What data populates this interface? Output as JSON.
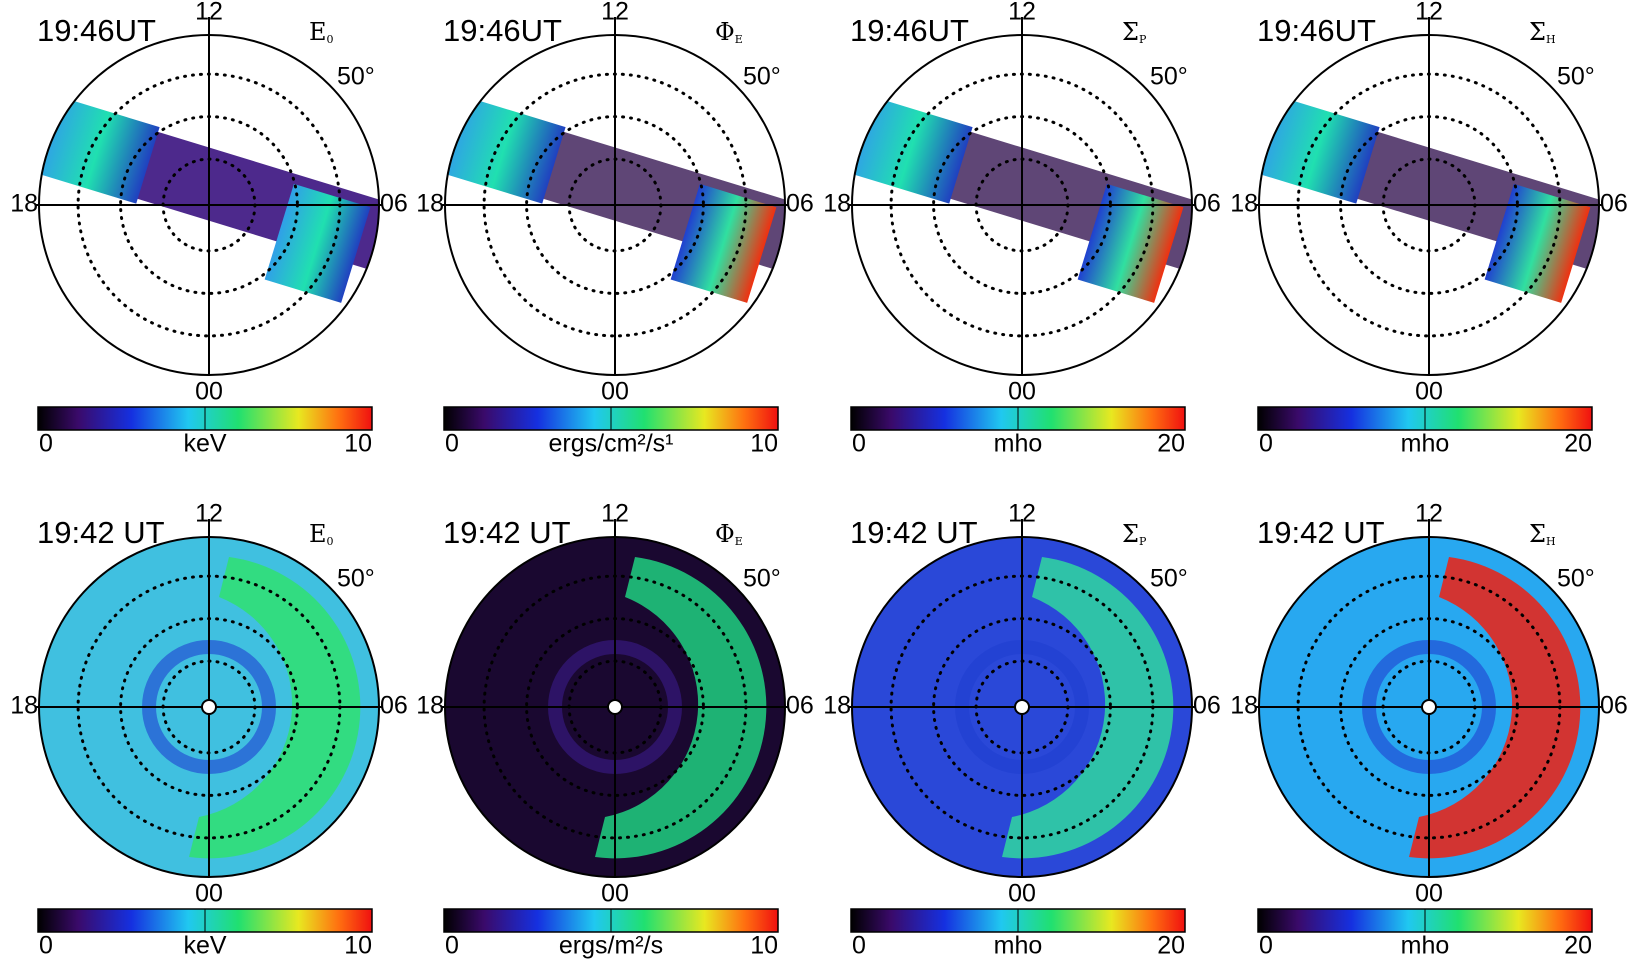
{
  "panels": [
    {
      "time": "19:46UT",
      "symbol": "E",
      "subscript": "0",
      "top": "12",
      "bottom": "00",
      "left": "18",
      "right": "06",
      "lat_label": "50°",
      "cb_min": "0",
      "cb_unit": "keV",
      "cb_max": "10"
    },
    {
      "time": "19:46UT",
      "symbol": "Φ",
      "subscript": "E",
      "top": "12",
      "bottom": "00",
      "left": "18",
      "right": "06",
      "lat_label": "50°",
      "cb_min": "0",
      "cb_unit": "ergs/cm²/s¹",
      "cb_max": "10"
    },
    {
      "time": "19:46UT",
      "symbol": "Σ",
      "subscript": "P",
      "top": "12",
      "bottom": "00",
      "left": "18",
      "right": "06",
      "lat_label": "50°",
      "cb_min": "0",
      "cb_unit": "mho",
      "cb_max": "20"
    },
    {
      "time": "19:46UT",
      "symbol": "Σ",
      "subscript": "H",
      "top": "12",
      "bottom": "00",
      "left": "18",
      "right": "06",
      "lat_label": "50°",
      "cb_min": "0",
      "cb_unit": "mho",
      "cb_max": "20"
    },
    {
      "time": "19:42 UT",
      "symbol": "E",
      "subscript": "0",
      "top": "12",
      "bottom": "00",
      "left": "18",
      "right": "06",
      "lat_label": "50°",
      "cb_min": "0",
      "cb_unit": "keV",
      "cb_max": "10"
    },
    {
      "time": "19:42 UT",
      "symbol": "Φ",
      "subscript": "E",
      "top": "12",
      "bottom": "00",
      "left": "18",
      "right": "06",
      "lat_label": "50°",
      "cb_min": "0",
      "cb_unit": "ergs/m²/s",
      "cb_max": "10"
    },
    {
      "time": "19:42 UT",
      "symbol": "Σ",
      "subscript": "P",
      "top": "12",
      "bottom": "00",
      "left": "18",
      "right": "06",
      "lat_label": "50°",
      "cb_min": "0",
      "cb_unit": "mho",
      "cb_max": "20"
    },
    {
      "time": "19:42 UT",
      "symbol": "Σ",
      "subscript": "H",
      "top": "12",
      "bottom": "00",
      "left": "18",
      "right": "06",
      "lat_label": "50°",
      "cb_min": "0",
      "cb_unit": "mho",
      "cb_max": "20"
    }
  ]
}
